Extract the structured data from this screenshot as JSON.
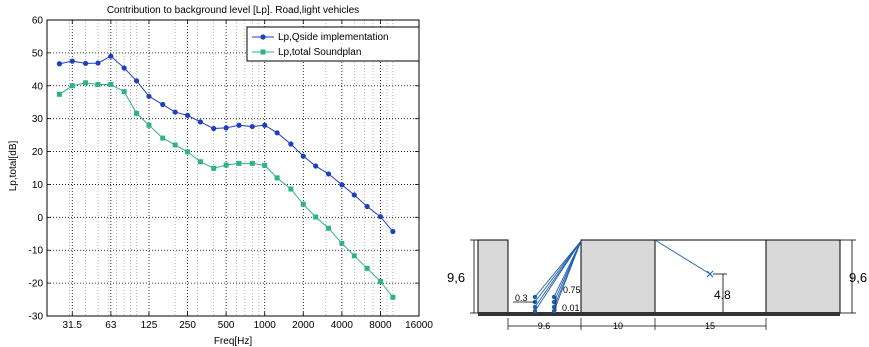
{
  "chart_data": {
    "type": "line",
    "title": "Contribution to background level [Lp]. Road,light vehicles",
    "xlabel": "Freq[Hz]",
    "ylabel": "Lp,total[dB]",
    "x_scale": "log",
    "xlim": [
      20,
      16000
    ],
    "ylim": [
      -30,
      60
    ],
    "grid": true,
    "legend_position": "top-right",
    "x_ticks": [
      31.5,
      63,
      125,
      250,
      500,
      1000,
      2000,
      4000,
      8000,
      16000
    ],
    "x_tick_labels": [
      "31.5",
      "63",
      "125",
      "250",
      "500",
      "1000",
      "2000",
      "4000",
      "8000",
      "16000"
    ],
    "y_ticks": [
      -30,
      -20,
      -10,
      0,
      10,
      20,
      30,
      40,
      50,
      60
    ],
    "x": [
      25,
      31.5,
      40,
      50,
      63,
      80,
      100,
      125,
      160,
      200,
      250,
      315,
      400,
      500,
      630,
      800,
      1000,
      1250,
      1600,
      2000,
      2500,
      3150,
      4000,
      5000,
      6300,
      8000,
      10000
    ],
    "series": [
      {
        "name": "Lp,Qside implementation",
        "color": "#1f3fbf",
        "marker": "circle",
        "values": [
          46.7,
          47.5,
          46.8,
          46.9,
          49.0,
          45.4,
          41.5,
          36.8,
          34.3,
          32.0,
          31.0,
          29.0,
          27.0,
          27.2,
          28.0,
          27.6,
          28.0,
          25.7,
          22.3,
          18.6,
          15.6,
          13.2,
          9.9,
          6.8,
          3.3,
          0.2,
          -4.3
        ]
      },
      {
        "name": "Lp,total Soundplan",
        "color": "#2fb28a",
        "marker": "square",
        "values": [
          37.4,
          40.0,
          40.9,
          40.4,
          40.4,
          38.2,
          31.6,
          28.0,
          24.1,
          22.0,
          19.9,
          16.9,
          14.9,
          15.9,
          16.4,
          16.4,
          15.8,
          12.0,
          8.6,
          4.0,
          0.1,
          -3.3,
          -7.9,
          -11.7,
          -15.5,
          -19.5,
          -24.3
        ]
      }
    ]
  },
  "diagram": {
    "labels": {
      "height_left": "9,6",
      "height_right": "9,6",
      "receiver_height": "4.8",
      "offset_a": "0.3",
      "offset_b": "0.75",
      "offset_c": "0.01",
      "width_1": "9.6",
      "width_2": "10",
      "width_3": "15"
    }
  }
}
